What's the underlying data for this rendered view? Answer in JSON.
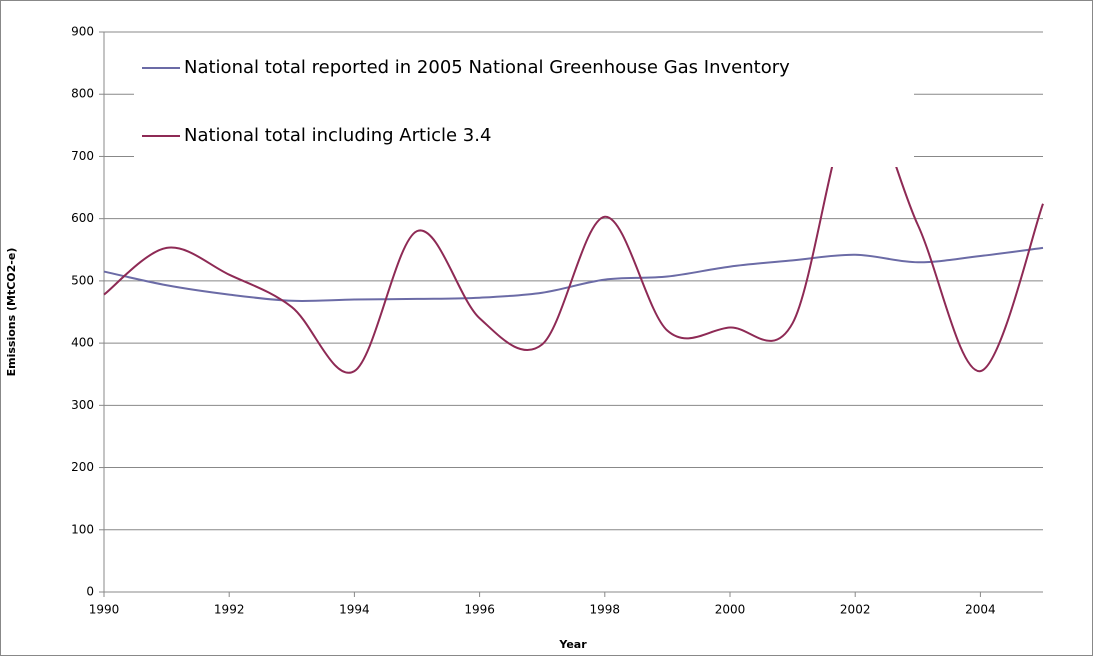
{
  "chart_data": {
    "type": "line",
    "x": [
      1990,
      1991,
      1992,
      1993,
      1994,
      1995,
      1996,
      1997,
      1998,
      1999,
      2000,
      2001,
      2002,
      2003,
      2004,
      2005
    ],
    "series": [
      {
        "name": "National total reported in 2005 National Greenhouse Gas Inventory",
        "color": "#6b6ba6",
        "values": [
          515,
          493,
          478,
          468,
          470,
          471,
          473,
          481,
          502,
          507,
          523,
          533,
          542,
          530,
          540,
          553
        ]
      },
      {
        "name": "National total including Article 3.4",
        "color": "#8e2a55",
        "values": [
          478,
          553,
          510,
          458,
          355,
          580,
          440,
          398,
          603,
          420,
          425,
          432,
          790,
          590,
          355,
          624
        ]
      }
    ],
    "xlabel": "Year",
    "ylabel": "Emissions (MtCO2-e)",
    "xlim": [
      1990,
      2005
    ],
    "xticks": [
      1990,
      1992,
      1994,
      1996,
      1998,
      2000,
      2002,
      2004
    ],
    "ylim": [
      0,
      900
    ],
    "yticks": [
      0,
      100,
      200,
      300,
      400,
      500,
      600,
      700,
      800,
      900
    ],
    "grid": true,
    "legend": "top-left"
  }
}
